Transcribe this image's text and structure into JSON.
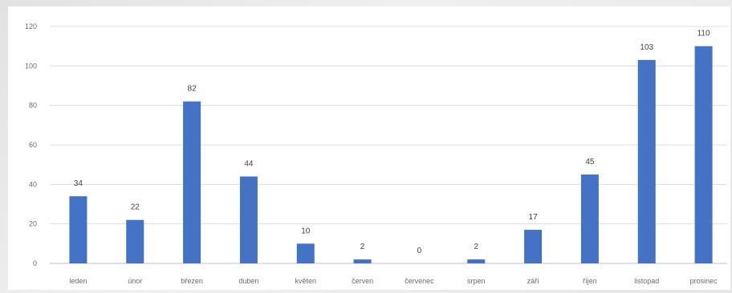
{
  "chart_data": {
    "type": "bar",
    "categories": [
      "leden",
      "únor",
      "březen",
      "duben",
      "květen",
      "červen",
      "červenec",
      "srpen",
      "září",
      "říjen",
      "listopad",
      "prosinec"
    ],
    "values": [
      34,
      22,
      82,
      44,
      10,
      2,
      0,
      2,
      17,
      45,
      103,
      110
    ],
    "ylim": [
      0,
      120
    ],
    "yticks": [
      0,
      20,
      40,
      60,
      80,
      100,
      120
    ],
    "grid": true,
    "data_labels": true,
    "bar_color": "#4472c4"
  }
}
